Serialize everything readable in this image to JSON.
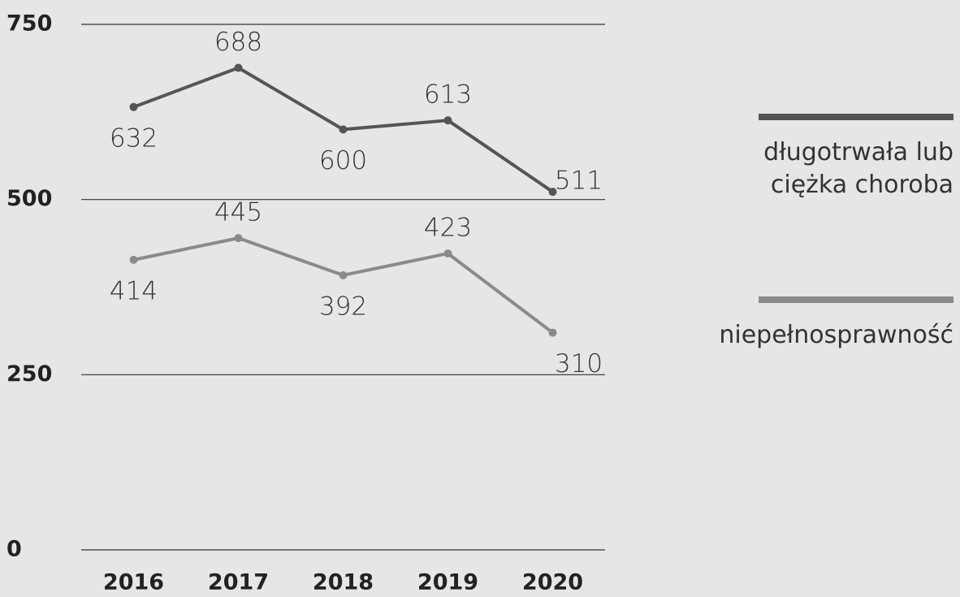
{
  "chart_data": {
    "type": "line",
    "categories": [
      "2016",
      "2017",
      "2018",
      "2019",
      "2020"
    ],
    "series": [
      {
        "name": "długotrwała lub ciężka choroba",
        "color": "#555555",
        "values": [
          632,
          688,
          600,
          613,
          511
        ]
      },
      {
        "name": "niepełnosprawność",
        "color": "#8a8a8a",
        "values": [
          414,
          445,
          392,
          423,
          310
        ]
      }
    ],
    "ylim": [
      0,
      750
    ],
    "yticks": [
      0,
      250,
      500,
      750
    ],
    "grid": true
  }
}
